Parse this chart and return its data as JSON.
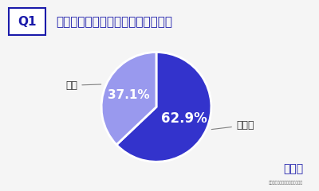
{
  "title": "スタッドレスタイヤを履きますか？",
  "q_label": "Q1",
  "slices": [
    62.9,
    37.1
  ],
  "labels": [
    "いいえ",
    "はい"
  ],
  "pct_labels": [
    "62.9%",
    "37.1%"
  ],
  "colors": [
    "#3333cc",
    "#9999ee"
  ],
  "bg_color": "#f5f5f5",
  "title_color": "#1a1aaa",
  "label_color": "#333333",
  "pct_color_dark": "#3333cc",
  "pct_color_light": "#ffffff",
  "startangle": 90,
  "logo_text": "旧車王",
  "logo_sub": "旧車専門の売買プラットフォーム"
}
